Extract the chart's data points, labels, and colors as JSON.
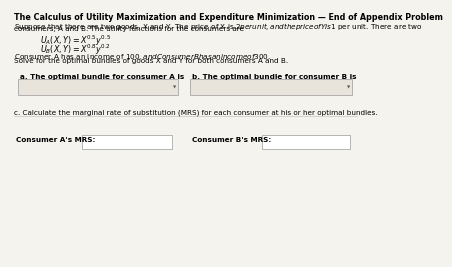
{
  "title": "The Calculus of Utility Maximization and Expenditure Minimization — End of Appendix Problem",
  "intro_line1": "Suppose that there are two goods, X and Y. The price of X is $2 per unit, and the price of Y is $1 per unit. There are two",
  "intro_line2": "consumers, A and B. The utility functions for the consumers are",
  "ua_math": "$U_A(X, Y) = X^{0.5}y^{0.5}$",
  "ub_math": "$U_B(X, Y) = X^{0.8}y^{0.2}$",
  "income_line": "Consumer A has an income of $100, and Consumer B has an income of $300.",
  "solve_line": "Solve for the optimal bundles of goods X and Y for both consumers A and B.",
  "label_a": "a. The optimal bundle for consumer A is",
  "label_b": "b. The optimal bundle for consumer B is",
  "label_c": "c. Calculate the marginal rate of substitution (MRS) for each consumer at his or her optimal bundles.",
  "label_mrsA": "Consumer A's MRS:",
  "label_mrsB": "Consumer B's MRS:",
  "bg_color": "#f5f3ee",
  "box_color": "#e8e4dc",
  "box_color_white": "#ffffff",
  "box_border": "#999999",
  "title_fontsize": 5.8,
  "body_fontsize": 5.2,
  "math_fontsize": 5.8,
  "small_fontsize": 4.8
}
